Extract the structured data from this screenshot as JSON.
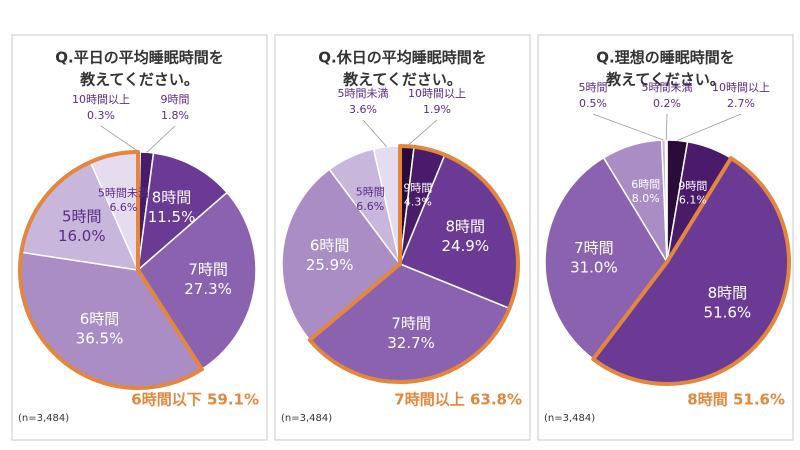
{
  "chart_data": [
    {
      "type": "pie",
      "title": [
        "Q.平日の平均睡眠時間を",
        "教えてください。"
      ],
      "categories": [
        "10時間以上",
        "9時間",
        "8時間",
        "7時間",
        "6時間",
        "5時間",
        "5時間未満"
      ],
      "values": [
        0.3,
        1.8,
        11.5,
        27.3,
        36.5,
        16.0,
        6.6
      ],
      "value_labels": [
        "0.3%",
        "1.8%",
        "11.5%",
        "27.3%",
        "36.5%",
        "16.0%",
        "6.6%"
      ],
      "colors": [
        "#2a0b3a",
        "#4a1a6b",
        "#6b3a95",
        "#8a62b0",
        "#a98dc4",
        "#c8b6dc",
        "#e6dcef"
      ],
      "highlight_slices": [
        4,
        5,
        6
      ],
      "annotation": "6時間以下 59.1%",
      "note": "(n=3,484)"
    },
    {
      "type": "pie",
      "title": [
        "Q.休日の平均睡眠時間を",
        "教えてください。"
      ],
      "categories": [
        "10時間以上",
        "9時間",
        "8時間",
        "7時間",
        "6時間",
        "5時間",
        "5時間未満"
      ],
      "values": [
        1.9,
        4.3,
        24.9,
        32.7,
        25.9,
        6.6,
        3.6
      ],
      "value_labels": [
        "1.9%",
        "4.3%",
        "24.9%",
        "32.7%",
        "25.9%",
        "6.6%",
        "3.6%"
      ],
      "colors": [
        "#2a0b3a",
        "#4a1a6b",
        "#6b3a95",
        "#8a62b0",
        "#a98dc4",
        "#c8b6dc",
        "#e6dcef"
      ],
      "highlight_slices": [
        0,
        1,
        2,
        3
      ],
      "annotation": "7時間以上 63.8%",
      "note": "(n=3,484)"
    },
    {
      "type": "pie",
      "title": [
        "Q.理想の睡眠時間を",
        "教えてください。"
      ],
      "categories": [
        "10時間以上",
        "9時間",
        "8時間",
        "7時間",
        "6時間",
        "5時間",
        "5時間未満"
      ],
      "values": [
        2.7,
        6.1,
        51.6,
        31.0,
        8.0,
        0.5,
        0.2
      ],
      "value_labels": [
        "2.7%",
        "6.1%",
        "51.6%",
        "31.0%",
        "8.0%",
        "0.5%",
        "0.2%"
      ],
      "colors": [
        "#2a0b3a",
        "#4a1a6b",
        "#6b3a95",
        "#8a62b0",
        "#a98dc4",
        "#c8b6dc",
        "#e6dcef"
      ],
      "highlight_slices": [
        2
      ],
      "annotation": "8時間 51.6%",
      "note": "(n=3,484)"
    }
  ]
}
